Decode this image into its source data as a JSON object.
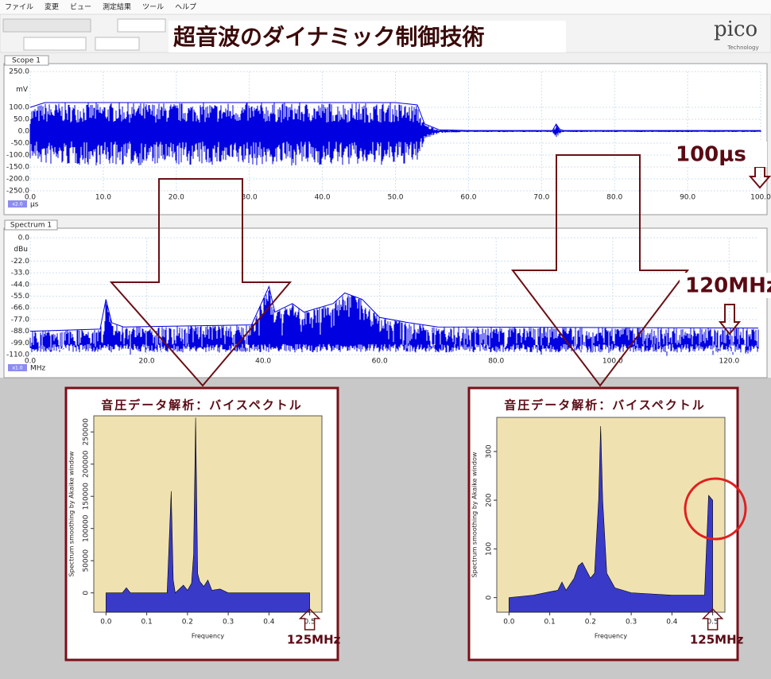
{
  "menu": [
    "ファイル",
    "変更",
    "ビュー",
    "測定結果",
    "ツール",
    "ヘルプ"
  ],
  "header": {
    "title": "超音波のダイナミック制御技術",
    "logo": "pico",
    "logo_sub": "Technology"
  },
  "scope": {
    "tab": "Scope 1",
    "y_unit": "mV",
    "x_unit": "µs",
    "zoom": "x2.0",
    "color": "#0000e0",
    "xlim": [
      0,
      100
    ],
    "ylim": [
      -250,
      250
    ],
    "xticks": [
      {
        "value": 0,
        "label": "0.0"
      },
      {
        "value": 10,
        "label": "10.0"
      },
      {
        "value": 20,
        "label": "20.0"
      },
      {
        "value": 30,
        "label": "30.0"
      },
      {
        "value": 40,
        "label": "40.0"
      },
      {
        "value": 50,
        "label": "50.0"
      },
      {
        "value": 60,
        "label": "60.0"
      },
      {
        "value": 70,
        "label": "70.0"
      },
      {
        "value": 80,
        "label": "80.0"
      },
      {
        "value": 90,
        "label": "90.0"
      },
      {
        "value": 100,
        "label": "100.0"
      }
    ],
    "yticks": [
      {
        "value": 250,
        "label": "250.0"
      },
      {
        "value": 100,
        "label": "100.0"
      },
      {
        "value": 50,
        "label": "50.0"
      },
      {
        "value": 0,
        "label": "0.0"
      },
      {
        "value": -50,
        "label": "-50.0"
      },
      {
        "value": -100,
        "label": "-100.0"
      },
      {
        "value": -150,
        "label": "-150.0"
      },
      {
        "value": -200,
        "label": "-200.0"
      },
      {
        "value": -250,
        "label": "-250.0"
      }
    ],
    "envelope": {
      "x": [
        0,
        2,
        50,
        53,
        54,
        56,
        60,
        71.5,
        72,
        72.5,
        73,
        100
      ],
      "values": [
        100,
        120,
        120,
        110,
        30,
        6,
        3,
        3,
        30,
        8,
        3,
        3
      ]
    }
  },
  "spectrum": {
    "tab": "Spectrum 1",
    "y_unit": "dBu",
    "x_unit": "MHz",
    "zoom": "x1.0",
    "color": "#0000e0",
    "xlim": [
      0,
      125
    ],
    "ylim": [
      -110,
      0
    ],
    "xticks": [
      {
        "value": 0,
        "label": "0.0"
      },
      {
        "value": 20,
        "label": "20.0"
      },
      {
        "value": 40,
        "label": "40.0"
      },
      {
        "value": 60,
        "label": "60.0"
      },
      {
        "value": 80,
        "label": "80.0"
      },
      {
        "value": 100,
        "label": "100.0"
      },
      {
        "value": 120,
        "label": "120.0"
      }
    ],
    "yticks": [
      {
        "value": 0,
        "label": "0.0"
      },
      {
        "value": -22,
        "label": "-22.0"
      },
      {
        "value": -33,
        "label": "-33.0"
      },
      {
        "value": -44,
        "label": "-44.0"
      },
      {
        "value": -55,
        "label": "-55.0"
      },
      {
        "value": -66,
        "label": "-66.0"
      },
      {
        "value": -77,
        "label": "-77.0"
      },
      {
        "value": -88,
        "label": "-88.0"
      },
      {
        "value": -99,
        "label": "-99.0"
      },
      {
        "value": -110,
        "label": "-110.0"
      }
    ],
    "envelope": {
      "x": [
        0,
        12,
        13,
        14,
        16,
        38,
        41,
        42,
        45,
        47,
        52,
        54,
        57,
        60,
        65,
        70,
        125
      ],
      "values": [
        -88,
        -86,
        -58,
        -80,
        -84,
        -82,
        -46,
        -70,
        -62,
        -70,
        -62,
        -52,
        -58,
        -75,
        -80,
        -84,
        -85
      ]
    }
  },
  "annotations": {
    "time": "100μs",
    "freq": "120MHz"
  },
  "bispectrum": [
    {
      "title": "音圧データ解析：バイスペクトル",
      "ylabel": "Spectrum smoothing by Akaike window",
      "xlabel": "Frequency",
      "note": "125MHz",
      "color": "#3a3ac8",
      "xlim": [
        -0.03,
        0.53
      ],
      "ylim": [
        -30000,
        275000
      ],
      "xticks": [
        {
          "value": 0,
          "label": "0.0"
        },
        {
          "value": 0.1,
          "label": "0.1"
        },
        {
          "value": 0.2,
          "label": "0.2"
        },
        {
          "value": 0.3,
          "label": "0.3"
        },
        {
          "value": 0.4,
          "label": "0.4"
        },
        {
          "value": 0.5,
          "label": "0.5"
        }
      ],
      "yticks": [
        0,
        50000,
        100000,
        150000,
        200000,
        250000
      ],
      "x": [
        0,
        0.04,
        0.05,
        0.06,
        0.15,
        0.16,
        0.165,
        0.17,
        0.19,
        0.2,
        0.21,
        0.215,
        0.22,
        0.225,
        0.23,
        0.24,
        0.25,
        0.26,
        0.28,
        0.3,
        0.5
      ],
      "values": [
        0,
        0,
        8000,
        0,
        0,
        158000,
        20000,
        0,
        12000,
        4000,
        15000,
        60000,
        272000,
        30000,
        18000,
        10000,
        20000,
        4000,
        6000,
        0,
        0
      ]
    },
    {
      "title": "音圧データ解析：バイスペクトル",
      "ylabel": "Spectrum smoothing by Akaike window",
      "xlabel": "Frequency",
      "note": "125MHz",
      "color": "#3a3ac8",
      "xlim": [
        -0.03,
        0.53
      ],
      "ylim": [
        -30,
        370
      ],
      "xticks": [
        {
          "value": 0,
          "label": "0.0"
        },
        {
          "value": 0.1,
          "label": "0.1"
        },
        {
          "value": 0.2,
          "label": "0.2"
        },
        {
          "value": 0.3,
          "label": "0.3"
        },
        {
          "value": 0.4,
          "label": "0.4"
        },
        {
          "value": 0.5,
          "label": "0.5"
        }
      ],
      "yticks": [
        0,
        100,
        200,
        300
      ],
      "x": [
        0,
        0.06,
        0.1,
        0.12,
        0.13,
        0.14,
        0.16,
        0.17,
        0.18,
        0.2,
        0.21,
        0.22,
        0.225,
        0.23,
        0.24,
        0.26,
        0.3,
        0.4,
        0.48,
        0.49,
        0.5
      ],
      "values": [
        0,
        5,
        12,
        15,
        32,
        15,
        40,
        65,
        72,
        40,
        50,
        200,
        352,
        200,
        50,
        20,
        10,
        5,
        5,
        210,
        200
      ]
    }
  ]
}
